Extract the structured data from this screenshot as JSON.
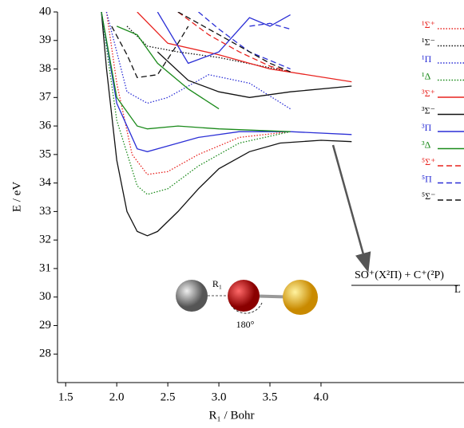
{
  "chart_data": {
    "type": "line",
    "xlabel": "R₁ / Bohr",
    "ylabel": "E / eV",
    "xlim": [
      1.42,
      5.4
    ],
    "ylim": [
      27,
      40
    ],
    "xticks": [
      1.5,
      {
        "value": 2,
        "label": "2.0"
      },
      2.5,
      {
        "value": 3,
        "label": "3.0"
      },
      3.5,
      {
        "value": 4,
        "label": "4.0"
      }
    ],
    "yticks": [
      28,
      29,
      30,
      31,
      32,
      33,
      34,
      35,
      36,
      37,
      38,
      39,
      40
    ],
    "legend": "upper right",
    "annotations": [
      "SO⁺(X²Π) + C⁺(²P)",
      "L",
      "R₁",
      "180°"
    ],
    "series": [
      {
        "name": "¹Σ⁺",
        "color": "#e8231f",
        "dash": "dotted",
        "x": [
          1.9,
          2.0,
          2.15,
          2.3,
          2.5,
          2.8,
          3.2,
          3.7
        ],
        "values": [
          40,
          37.5,
          35.0,
          34.3,
          34.4,
          35.0,
          35.6,
          35.8
        ]
      },
      {
        "name": "¹Σ⁻",
        "color": "#111111",
        "dash": "dotted",
        "x": [
          2.1,
          2.3,
          2.6,
          3.0,
          3.7
        ],
        "values": [
          39.5,
          38.8,
          38.6,
          38.4,
          37.9
        ]
      },
      {
        "name": "¹Π",
        "color": "#2b2fd6",
        "dash": "dotted",
        "x": [
          1.9,
          2.1,
          2.3,
          2.5,
          2.9,
          3.3,
          3.7
        ],
        "values": [
          40,
          37.2,
          36.8,
          37.0,
          37.8,
          37.5,
          36.6
        ]
      },
      {
        "name": "¹Δ",
        "color": "#1a8a1a",
        "dash": "dotted",
        "x": [
          1.85,
          2.0,
          2.2,
          2.3,
          2.5,
          2.8,
          3.2,
          3.7
        ],
        "values": [
          40,
          36.2,
          33.9,
          33.6,
          33.8,
          34.6,
          35.4,
          35.8
        ]
      },
      {
        "name": "³Σ⁺",
        "color": "#e8231f",
        "dash": "solid",
        "x": [
          2.2,
          2.5,
          3.0,
          3.5,
          4.3
        ],
        "values": [
          40,
          38.9,
          38.5,
          38.0,
          37.55
        ]
      },
      {
        "name": "³Σ⁻",
        "color": "#111111",
        "dash": "solid",
        "x": [
          1.85,
          1.9,
          2.0,
          2.1,
          2.2,
          2.3,
          2.4,
          2.6,
          2.8,
          3.0,
          3.3,
          3.6,
          4.0,
          4.3,
          null,
          2.4,
          2.7,
          3.0,
          3.3,
          3.7,
          4.3
        ],
        "values": [
          40,
          38.0,
          34.8,
          33.0,
          32.3,
          32.15,
          32.3,
          33.0,
          33.8,
          34.5,
          35.1,
          35.4,
          35.5,
          35.45,
          null,
          38.6,
          37.6,
          37.2,
          37.0,
          37.2,
          37.4
        ]
      },
      {
        "name": "³Π",
        "color": "#2b2fd6",
        "dash": "solid",
        "x": [
          1.85,
          2.0,
          2.2,
          2.3,
          2.5,
          2.8,
          3.2,
          3.7,
          4.3,
          null,
          2.4,
          2.7,
          3.0,
          3.3,
          3.5,
          3.7
        ],
        "values": [
          40,
          36.8,
          35.2,
          35.1,
          35.3,
          35.6,
          35.8,
          35.8,
          35.7,
          null,
          40,
          38.2,
          38.6,
          39.8,
          39.5,
          39.9
        ]
      },
      {
        "name": "³Δ",
        "color": "#1a8a1a",
        "dash": "solid",
        "x": [
          1.85,
          2.0,
          2.2,
          2.3,
          2.6,
          3.0,
          3.7,
          null,
          2.0,
          2.2,
          2.4,
          2.7,
          3.0
        ],
        "values": [
          40,
          37,
          36.0,
          35.9,
          36.0,
          35.9,
          35.8,
          null,
          39.5,
          39.2,
          38.2,
          37.3,
          36.6
        ]
      },
      {
        "name": "⁵Σ⁺",
        "color": "#e8231f",
        "dash": "dashed",
        "x": [
          2.6,
          2.9,
          3.2,
          3.5,
          3.7
        ],
        "values": [
          40,
          39.2,
          38.6,
          38.1,
          37.9
        ]
      },
      {
        "name": "⁵Π",
        "color": "#2b2fd6",
        "dash": "dashed",
        "x": [
          2.8,
          3.0,
          3.3,
          3.7,
          null,
          3.3,
          3.5,
          3.7
        ],
        "values": [
          40,
          39.4,
          38.6,
          38.0,
          null,
          39.5,
          39.6,
          39.4
        ]
      },
      {
        "name": "⁵Σ⁻",
        "color": "#111111",
        "dash": "dashed",
        "x": [
          1.95,
          2.1,
          2.2,
          2.4,
          2.6,
          2.7,
          null,
          2.6,
          3.0,
          3.5,
          3.7
        ],
        "values": [
          39.5,
          38.5,
          37.7,
          37.8,
          38.9,
          39.5,
          null,
          40,
          39.2,
          38.2,
          37.9
        ]
      }
    ]
  }
}
